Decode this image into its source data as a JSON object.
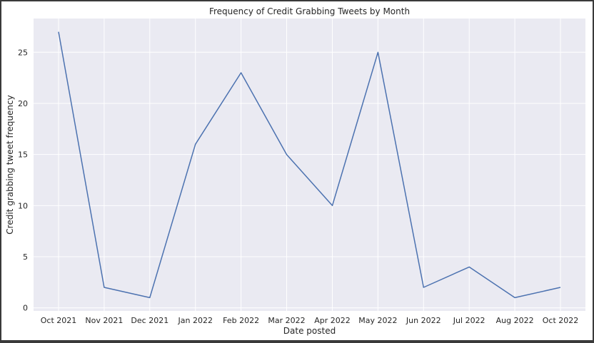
{
  "chart_data": {
    "type": "line",
    "title": "Frequency of Credit Grabbing Tweets by Month",
    "xlabel": "Date posted",
    "ylabel": "Credit grabbing tweet frequency",
    "categories": [
      "Oct 2021",
      "Nov 2021",
      "Dec 2021",
      "Jan 2022",
      "Feb 2022",
      "Mar 2022",
      "Apr 2022",
      "May 2022",
      "Jun 2022",
      "Jul 2022",
      "Aug 2022",
      "Oct 2022"
    ],
    "series": [
      {
        "values": [
          27,
          2,
          1,
          16,
          23,
          15,
          10,
          25,
          2,
          4,
          1,
          2
        ]
      }
    ],
    "yticks": [
      0,
      5,
      10,
      15,
      20,
      25
    ],
    "ylim": [
      -0.3,
      28.3
    ],
    "grid": true,
    "colors": {
      "line": "#4c72b0",
      "background": "#eaeaf2",
      "grid": "#ffffff"
    }
  }
}
